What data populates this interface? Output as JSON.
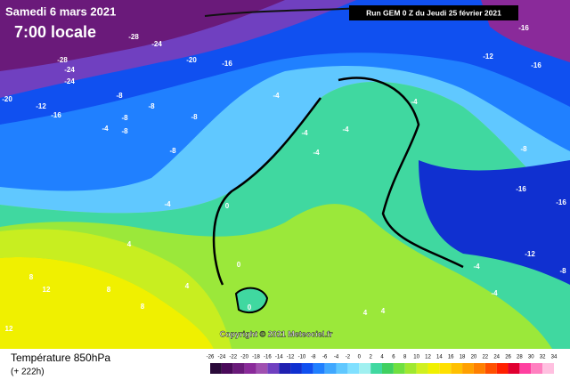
{
  "header": {
    "date": "Samedi 6 mars 2021",
    "time": "7:00 locale",
    "run": "Run GEM 0 Z du Jeudi 25 février 2021"
  },
  "copyright": "Copyright © 2021 Meteociel.fr",
  "legend": {
    "title": "Température 850hPa",
    "lead": "(+ 222h)"
  },
  "colorbar": {
    "ticks": [
      -26,
      -24,
      -22,
      -20,
      -18,
      -16,
      -14,
      -12,
      -10,
      -8,
      -6,
      -4,
      -2,
      0,
      2,
      4,
      6,
      8,
      10,
      12,
      14,
      16,
      18,
      20,
      22,
      24,
      26,
      28,
      30,
      32,
      34
    ],
    "colors": [
      "#2a0a3a",
      "#4a0a5a",
      "#6a1a7a",
      "#8a2a9a",
      "#a050b0",
      "#7040c0",
      "#2020b0",
      "#1030d0",
      "#1050f0",
      "#2080ff",
      "#40a8ff",
      "#60c8ff",
      "#80e0ff",
      "#a0f0f0",
      "#40d8a0",
      "#40d060",
      "#70e040",
      "#a0e830",
      "#d0f020",
      "#f0f000",
      "#ffe000",
      "#ffc000",
      "#ffa000",
      "#ff8000",
      "#ff5000",
      "#ff2000",
      "#e00030",
      "#ff40a0",
      "#ff80c0",
      "#ffc0e0"
    ]
  },
  "contour_labels": [
    -28,
    -24,
    -20,
    -16,
    -28,
    -24,
    -24,
    -20,
    -12,
    -16,
    -8,
    -8,
    -8,
    -8,
    -4,
    -8,
    -4,
    -8,
    -4,
    -4,
    -4,
    -4,
    0,
    0,
    0,
    4,
    4,
    4,
    4,
    8,
    12,
    8,
    8,
    12,
    -4,
    -8,
    -12,
    -16,
    -16,
    -16,
    -16,
    -12,
    -8,
    -4,
    -4
  ]
}
